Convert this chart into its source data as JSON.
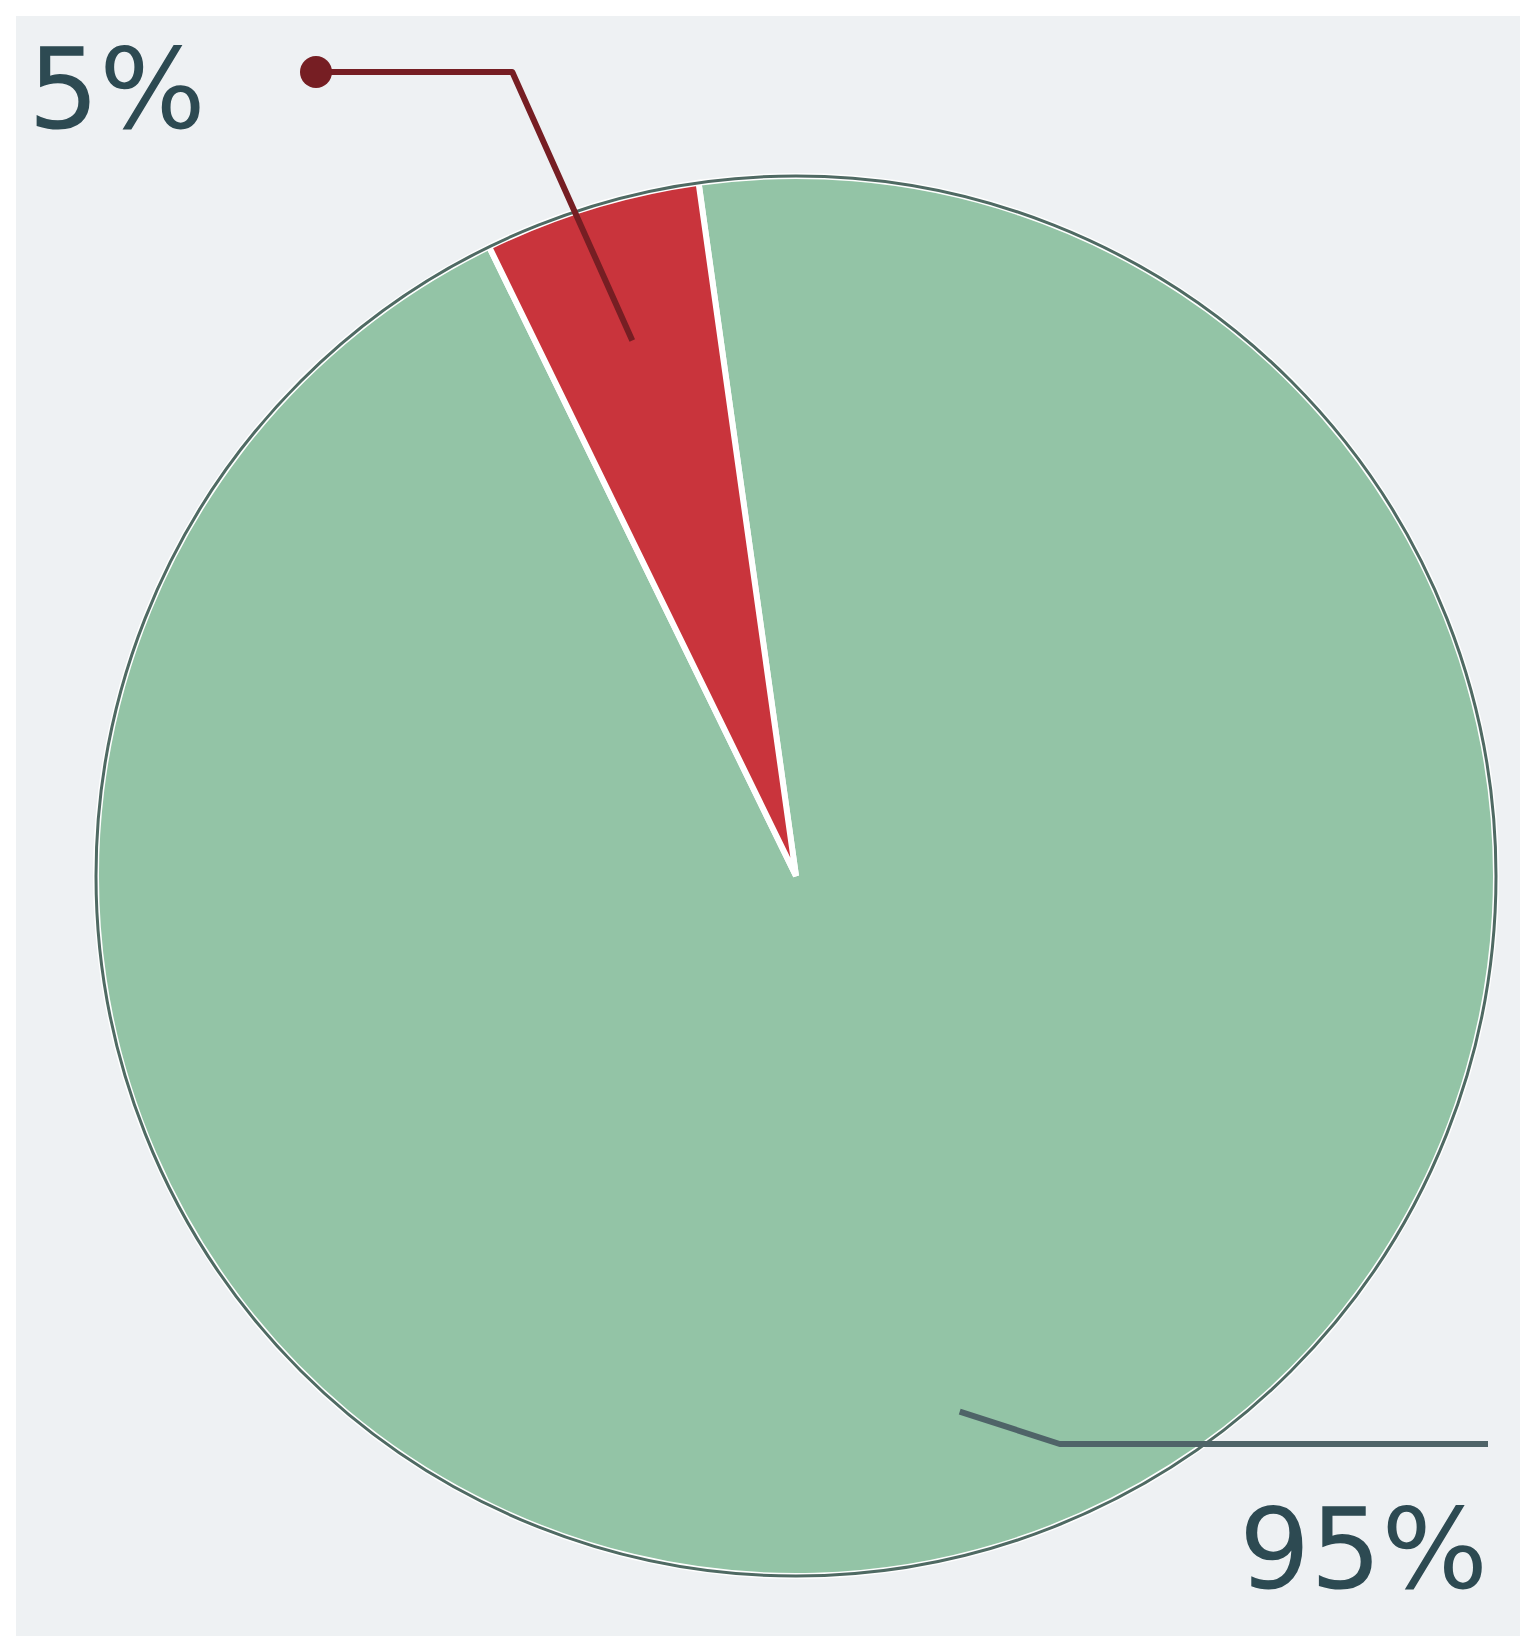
{
  "chart_data": {
    "type": "pie",
    "categories": [
      null,
      null
    ],
    "values": [
      95,
      5
    ],
    "colors": [
      "#93c4a6",
      "#c9343c"
    ],
    "value_labels": [
      "95%",
      "5%"
    ]
  }
}
